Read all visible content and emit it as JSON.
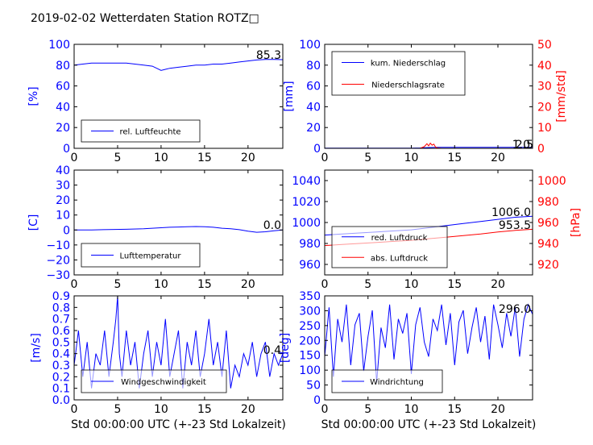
{
  "title": "2019-02-02 Wetterdaten Station ROTZ□",
  "colors": {
    "primary": "#0000ff",
    "secondary": "#ff0000",
    "axis": "#000000"
  },
  "chart_data": [
    {
      "id": "humidity",
      "type": "line",
      "ylabel": "[%]",
      "xlim": [
        0,
        24
      ],
      "ylim": [
        0,
        100
      ],
      "xticks": [
        "0",
        "5",
        "10",
        "15",
        "20"
      ],
      "yticks": [
        "0",
        "20",
        "40",
        "60",
        "80",
        "100"
      ],
      "legend": [
        "rel. Luftfeuchte"
      ],
      "legend_position": "lower-left",
      "annotation": "85.3",
      "series": [
        {
          "name": "rel. Luftfeuchte",
          "color": "#0000ff",
          "x": [
            0,
            1,
            2,
            3,
            4,
            5,
            6,
            7,
            8,
            9,
            9.5,
            10,
            10.5,
            11,
            12,
            13,
            14,
            15,
            16,
            17,
            18,
            19,
            20,
            21,
            22,
            23,
            24
          ],
          "y": [
            80,
            81,
            82,
            82,
            82,
            82,
            82,
            81,
            80,
            79,
            77,
            75,
            76,
            77,
            78,
            79,
            80,
            80,
            81,
            81,
            82,
            83,
            84,
            85,
            85.5,
            85.5,
            85.3
          ]
        }
      ]
    },
    {
      "id": "precip",
      "type": "line",
      "ylabel": "[mm]",
      "ylabel_right": "[mm/std]",
      "xlim": [
        0,
        24
      ],
      "ylim": [
        0,
        100
      ],
      "ylim_right": [
        0,
        50
      ],
      "xticks": [
        "0",
        "5",
        "10",
        "15",
        "20"
      ],
      "yticks": [
        "0",
        "20",
        "40",
        "60",
        "80",
        "100"
      ],
      "yticks_right": [
        "0",
        "10",
        "20",
        "30",
        "40",
        "50"
      ],
      "legend": [
        "kum. Niederschlag",
        "Niederschlagsrate"
      ],
      "legend_position": "upper-left",
      "annotation": "1.0",
      "annotation2": "2.5",
      "series": [
        {
          "name": "kum. Niederschlag",
          "color": "#0000ff",
          "x": [
            0,
            10,
            11,
            12,
            13,
            14,
            16,
            20,
            24
          ],
          "y": [
            0.2,
            0.2,
            0.4,
            0.8,
            1.0,
            1.0,
            1.0,
            1.0,
            1.0
          ]
        },
        {
          "name": "Niederschlagsrate",
          "color": "#ff0000",
          "axis": "right",
          "x": [
            0,
            11,
            11.5,
            11.8,
            12,
            12.2,
            12.4,
            12.6,
            12.8,
            13,
            13.5,
            24
          ],
          "y": [
            0,
            0,
            0.8,
            2.2,
            1.2,
            2.5,
            1.5,
            2.0,
            0.6,
            0.2,
            0,
            0
          ]
        }
      ]
    },
    {
      "id": "temperature",
      "type": "line",
      "ylabel": "[C]",
      "xlim": [
        0,
        24
      ],
      "ylim": [
        -30,
        40
      ],
      "xticks": [
        "0",
        "5",
        "10",
        "15",
        "20"
      ],
      "yticks": [
        "−30",
        "−20",
        "−10",
        "0",
        "10",
        "20",
        "30",
        "40"
      ],
      "legend": [
        "Lufttemperatur"
      ],
      "legend_position": "lower-left",
      "annotation": "0.0",
      "series": [
        {
          "name": "Lufttemperatur",
          "color": "#0000ff",
          "x": [
            0,
            2,
            4,
            6,
            8,
            9,
            10,
            11,
            12,
            13,
            14,
            15,
            16,
            17,
            18,
            19,
            20,
            21,
            22,
            23,
            24
          ],
          "y": [
            0,
            0,
            0.3,
            0.5,
            0.8,
            1.2,
            1.5,
            1.8,
            2.0,
            2.2,
            2.3,
            2.2,
            1.8,
            1.2,
            0.8,
            0.2,
            -0.8,
            -1.5,
            -1.2,
            -0.5,
            0
          ]
        }
      ]
    },
    {
      "id": "pressure",
      "type": "line",
      "ylabel_right": "[hPa]",
      "xlim": [
        0,
        24
      ],
      "ylim": [
        950,
        1050
      ],
      "ylim_right": [
        910,
        1010
      ],
      "xticks": [
        "0",
        "5",
        "10",
        "15",
        "20"
      ],
      "yticks": [
        "960",
        "980",
        "1000",
        "1020",
        "1040"
      ],
      "yticks_right": [
        "920",
        "940",
        "960",
        "980",
        "1000"
      ],
      "legend": [
        "red. Luftdruck",
        "abs. Luftdruck"
      ],
      "legend_position": "lower-left",
      "annotation": "1006.0",
      "annotation2": "953.5",
      "series": [
        {
          "name": "red. Luftdruck",
          "color": "#0000ff",
          "x": [
            0,
            2,
            4,
            6,
            8,
            10,
            12,
            14,
            16,
            18,
            20,
            22,
            24
          ],
          "y": [
            988,
            989,
            990,
            991,
            992,
            993,
            995,
            997,
            999,
            1001,
            1003,
            1005,
            1006
          ]
        },
        {
          "name": "abs. Luftdruck",
          "color": "#ff0000",
          "axis": "right",
          "x": [
            0,
            2,
            4,
            6,
            8,
            10,
            12,
            14,
            16,
            18,
            20,
            22,
            24
          ],
          "y": [
            938,
            939,
            940,
            941,
            942,
            943,
            944.5,
            946,
            947.5,
            949,
            951,
            952.5,
            953.5
          ]
        }
      ]
    },
    {
      "id": "wind-speed",
      "type": "line",
      "ylabel": "[m/s]",
      "xlabel": "Std 00:00:00 UTC (+-23 Std Lokalzeit)",
      "xlim": [
        0,
        24
      ],
      "ylim": [
        0,
        0.9
      ],
      "xticks": [
        "0",
        "5",
        "10",
        "15",
        "20"
      ],
      "yticks": [
        "0.0",
        "0.1",
        "0.2",
        "0.3",
        "0.4",
        "0.5",
        "0.6",
        "0.7",
        "0.8",
        "0.9"
      ],
      "legend": [
        "Windgeschwindigkeit"
      ],
      "legend_position": "lower-left",
      "annotation": "0.4",
      "series": [
        {
          "name": "Windgeschwindigkeit",
          "color": "#0000ff",
          "x": [
            0,
            0.5,
            1,
            1.5,
            2,
            2.5,
            3,
            3.5,
            4,
            4.5,
            4.8,
            5,
            5.2,
            5.5,
            6,
            6.5,
            7,
            7.5,
            8,
            8.5,
            9,
            9.5,
            10,
            10.5,
            11,
            11.5,
            12,
            12.5,
            13,
            13.5,
            14,
            14.5,
            15,
            15.5,
            16,
            16.5,
            17,
            17.5,
            18,
            18.5,
            19,
            19.5,
            20,
            20.5,
            21,
            21.5,
            22,
            22.5,
            23,
            23.5,
            24
          ],
          "y": [
            0.3,
            0.6,
            0.2,
            0.5,
            0.1,
            0.4,
            0.3,
            0.6,
            0.2,
            0.5,
            0.7,
            0.9,
            0.4,
            0.2,
            0.6,
            0.3,
            0.5,
            0.1,
            0.4,
            0.6,
            0.2,
            0.5,
            0.3,
            0.7,
            0.2,
            0.4,
            0.6,
            0.1,
            0.5,
            0.3,
            0.6,
            0.2,
            0.4,
            0.7,
            0.3,
            0.5,
            0.2,
            0.6,
            0.1,
            0.3,
            0.2,
            0.4,
            0.3,
            0.5,
            0.2,
            0.4,
            0.5,
            0.2,
            0.4,
            0.3,
            0.4
          ]
        }
      ]
    },
    {
      "id": "wind-direction",
      "type": "line",
      "ylabel": "[deg]",
      "xlabel": "Std 00:00:00 UTC (+-23 Std Lokalzeit)",
      "xlim": [
        0,
        24
      ],
      "ylim": [
        0,
        360
      ],
      "xticks": [
        "0",
        "5",
        "10",
        "15",
        "20"
      ],
      "yticks": [
        "0",
        "50",
        "100",
        "150",
        "200",
        "250",
        "300",
        "350"
      ],
      "legend": [
        "Windrichtung"
      ],
      "legend_position": "lower-left",
      "annotation": "296.0",
      "series": [
        {
          "name": "Windrichtung",
          "color": "#0000ff",
          "x": [
            0,
            0.5,
            1,
            1.5,
            2,
            2.5,
            3,
            3.5,
            4,
            4.5,
            5,
            5.5,
            6,
            6.5,
            7,
            7.5,
            8,
            8.5,
            9,
            9.5,
            10,
            10.5,
            11,
            11.5,
            12,
            12.5,
            13,
            13.5,
            14,
            14.5,
            15,
            15.5,
            16,
            16.5,
            17,
            17.5,
            18,
            18.5,
            19,
            19.5,
            20,
            20.5,
            21,
            21.5,
            22,
            22.5,
            23,
            23.5,
            24
          ],
          "y": [
            150,
            320,
            80,
            280,
            200,
            330,
            120,
            260,
            300,
            100,
            220,
            310,
            60,
            250,
            180,
            330,
            140,
            280,
            230,
            300,
            90,
            260,
            320,
            200,
            150,
            280,
            240,
            330,
            190,
            300,
            120,
            270,
            310,
            160,
            250,
            320,
            200,
            290,
            140,
            330,
            260,
            180,
            300,
            220,
            320,
            150,
            280,
            330,
            296
          ]
        }
      ]
    }
  ]
}
